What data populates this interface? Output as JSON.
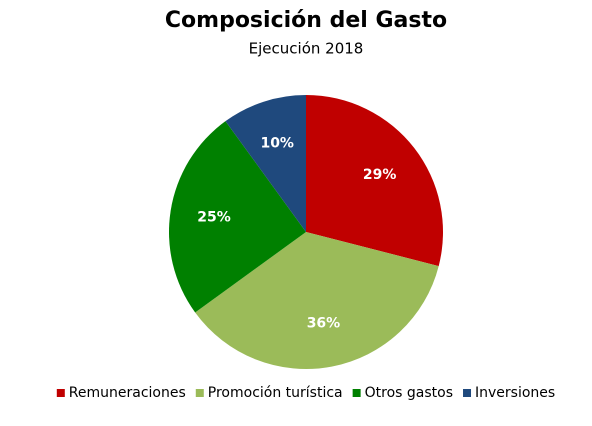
{
  "chart_data": {
    "type": "pie",
    "title": "Composición del Gasto",
    "subtitle": "Ejecución 2018",
    "categories": [
      "Remuneraciones",
      "Promoción turística",
      "Otros gastos",
      "Inversiones"
    ],
    "values": [
      29,
      36,
      25,
      10
    ],
    "value_labels": [
      "29%",
      "36%",
      "25%",
      "10%"
    ],
    "colors": [
      "#c00000",
      "#9bbb59",
      "#008000",
      "#1f497d"
    ],
    "legend": "bottom"
  }
}
